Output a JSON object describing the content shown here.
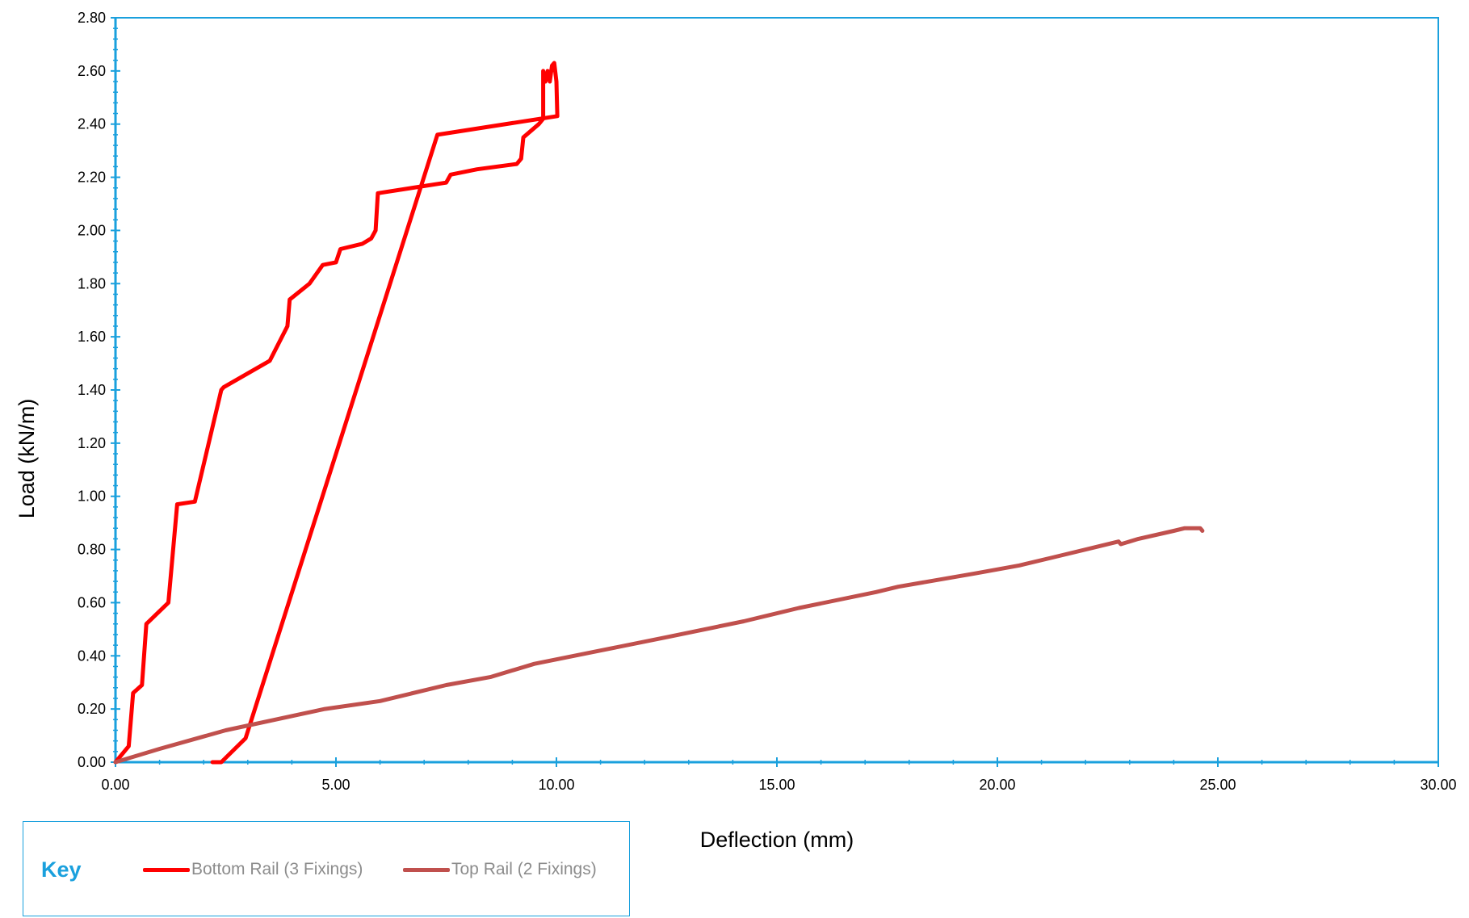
{
  "chart_data": {
    "type": "line",
    "xlabel": "Deflection (mm)",
    "ylabel": "Load (kN/m)",
    "xlim": [
      0,
      30
    ],
    "ylim": [
      0,
      2.8
    ],
    "x_ticks": [
      "0.00",
      "5.00",
      "10.00",
      "15.00",
      "20.00",
      "25.00",
      "30.00"
    ],
    "y_ticks": [
      "0.00",
      "0.20",
      "0.40",
      "0.60",
      "0.80",
      "1.00",
      "1.20",
      "1.40",
      "1.60",
      "1.80",
      "2.00",
      "2.20",
      "2.40",
      "2.60",
      "2.80"
    ],
    "grid": false,
    "legend_title": "Key",
    "legend_position": "bottom-left",
    "series": [
      {
        "name": "Bottom Rail (3 Fixings)",
        "color": "#ff0000",
        "points": [
          [
            0.0,
            0.0
          ],
          [
            0.3,
            0.06
          ],
          [
            0.4,
            0.26
          ],
          [
            0.6,
            0.29
          ],
          [
            0.7,
            0.52
          ],
          [
            1.2,
            0.6
          ],
          [
            1.4,
            0.97
          ],
          [
            1.8,
            0.98
          ],
          [
            2.4,
            1.4
          ],
          [
            2.45,
            1.41
          ],
          [
            3.5,
            1.51
          ],
          [
            3.9,
            1.64
          ],
          [
            3.95,
            1.74
          ],
          [
            4.4,
            1.8
          ],
          [
            4.7,
            1.87
          ],
          [
            5.0,
            1.88
          ],
          [
            5.1,
            1.93
          ],
          [
            5.6,
            1.95
          ],
          [
            5.8,
            1.97
          ],
          [
            5.9,
            2.0
          ],
          [
            5.95,
            2.14
          ],
          [
            7.5,
            2.18
          ],
          [
            7.6,
            2.21
          ],
          [
            8.2,
            2.23
          ],
          [
            9.1,
            2.25
          ],
          [
            9.2,
            2.27
          ],
          [
            9.25,
            2.35
          ],
          [
            9.6,
            2.4
          ],
          [
            9.7,
            2.42
          ],
          [
            9.7,
            2.6
          ],
          [
            9.75,
            2.56
          ],
          [
            9.8,
            2.6
          ],
          [
            9.85,
            2.56
          ],
          [
            9.9,
            2.62
          ],
          [
            9.95,
            2.63
          ],
          [
            10.0,
            2.56
          ],
          [
            10.02,
            2.43
          ],
          [
            7.3,
            2.36
          ],
          [
            2.95,
            0.09
          ],
          [
            2.4,
            0.0
          ],
          [
            2.2,
            0.0
          ]
        ]
      },
      {
        "name": "Top Rail (2 Fixings)",
        "color": "#c0504d",
        "points": [
          [
            0.0,
            0.0
          ],
          [
            1.0,
            0.05
          ],
          [
            2.5,
            0.12
          ],
          [
            4.75,
            0.2
          ],
          [
            6.0,
            0.23
          ],
          [
            7.5,
            0.29
          ],
          [
            8.5,
            0.32
          ],
          [
            9.5,
            0.37
          ],
          [
            11.0,
            0.42
          ],
          [
            12.5,
            0.47
          ],
          [
            14.25,
            0.53
          ],
          [
            15.5,
            0.58
          ],
          [
            17.25,
            0.64
          ],
          [
            17.75,
            0.66
          ],
          [
            19.5,
            0.71
          ],
          [
            20.5,
            0.74
          ],
          [
            21.25,
            0.77
          ],
          [
            22.25,
            0.81
          ],
          [
            22.75,
            0.83
          ],
          [
            22.8,
            0.82
          ],
          [
            23.2,
            0.84
          ],
          [
            24.0,
            0.87
          ],
          [
            24.25,
            0.88
          ],
          [
            24.6,
            0.88
          ],
          [
            24.65,
            0.87
          ]
        ]
      }
    ]
  }
}
